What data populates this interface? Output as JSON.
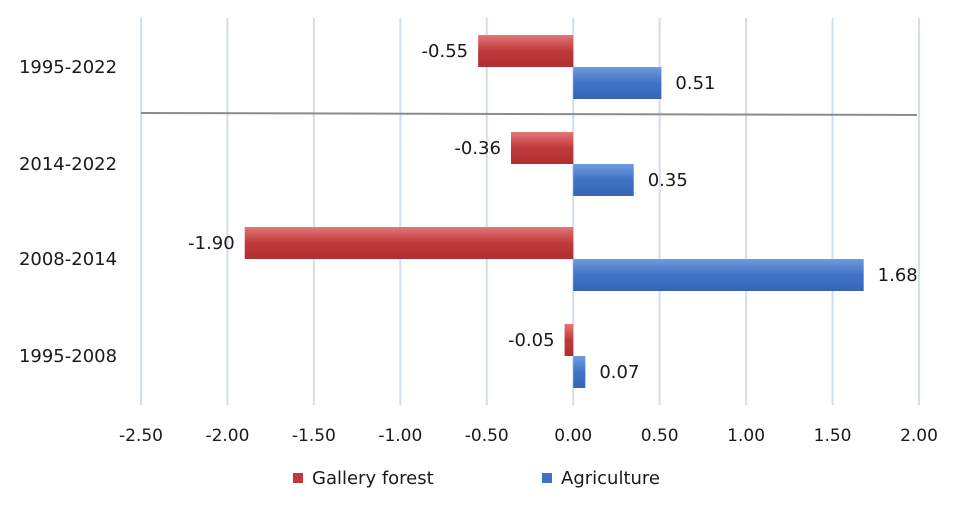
{
  "chart_data": {
    "type": "bar",
    "orientation": "horizontal",
    "categories": [
      "1995-2022",
      "2014-2022",
      "2008-2014",
      "1995-2008"
    ],
    "series": [
      {
        "name": "Gallery forest",
        "values": [
          -0.55,
          -0.36,
          -1.9,
          -0.05
        ],
        "color": "#c0393b"
      },
      {
        "name": "Agriculture",
        "values": [
          0.51,
          0.35,
          1.68,
          0.07
        ],
        "color": "#3f73c4"
      }
    ],
    "value_labels": {
      "Gallery forest": [
        "-0.55",
        "-0.36",
        "-1.90",
        "-0.05"
      ],
      "Agriculture": [
        "0.51",
        "0.35",
        "1.68",
        "0.07"
      ]
    },
    "xlim": [
      -2.5,
      2.0
    ],
    "xticks": [
      -2.5,
      -2.0,
      -1.5,
      -1.0,
      -0.5,
      0.0,
      0.5,
      1.0,
      1.5,
      2.0
    ],
    "xtick_labels": [
      "-2.50",
      "-2.00",
      "-1.50",
      "-1.00",
      "-0.50",
      "0.00",
      "0.50",
      "1.00",
      "1.50",
      "2.00"
    ],
    "grid": "vertical",
    "legend": {
      "position": "bottom",
      "entries": [
        "Gallery forest",
        "Agriculture"
      ]
    },
    "separator_after_category": "1995-2022",
    "title": "",
    "xlabel": "",
    "ylabel": ""
  }
}
